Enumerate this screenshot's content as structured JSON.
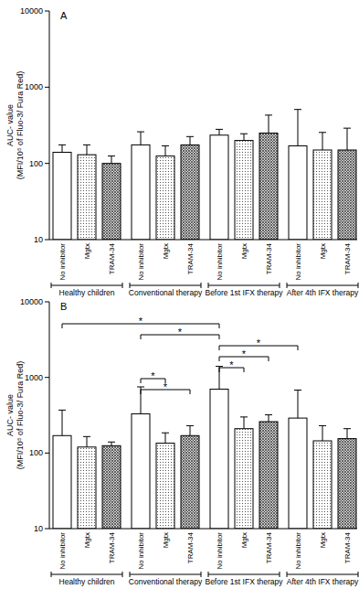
{
  "chart_data": [
    {
      "type": "bar",
      "title": "A",
      "y_label": "AUC- value\n(MFI/10⁵ of Fluo-3/ Fura Red)",
      "categories": [
        "No inhibitor",
        "Mgtx",
        "TRAM-34",
        "No inhibitor",
        "Mgtx",
        "TRAM-34",
        "No inhibitor",
        "Mgtx",
        "TRAM-34",
        "No inhibitor",
        "Mgtx",
        "TRAM-34"
      ],
      "groups": [
        "Healthy children",
        "Conventional therapy",
        "Before 1st IFX therapy",
        "After 4th IFX therapy"
      ],
      "values": [
        140,
        130,
        100,
        175,
        125,
        175,
        235,
        200,
        250,
        170,
        150,
        150
      ],
      "errors": [
        35,
        45,
        25,
        85,
        45,
        50,
        45,
        45,
        180,
        340,
        105,
        140
      ],
      "ylim": [
        10,
        10000
      ],
      "yticks": [
        10,
        100,
        1000,
        10000
      ],
      "log": "y"
    },
    {
      "type": "bar",
      "title": "B",
      "y_label": "AUC- value\n(MFI/10⁵ of Fluo-3/ Fura Red)",
      "categories": [
        "No inhibitor",
        "Mgtx",
        "TRAM-34",
        "No inhibitor",
        "Mgtx",
        "TRAM-34",
        "No inhibitor",
        "Mgtx",
        "TRAM-34",
        "No inhibitor",
        "Mgtx",
        "TRAM-34"
      ],
      "groups": [
        "Healthy children",
        "Conventional therapy",
        "Before 1st IFX therapy",
        "After 4th IFX therapy"
      ],
      "values": [
        170,
        120,
        125,
        330,
        135,
        170,
        700,
        210,
        260,
        290,
        145,
        155
      ],
      "errors": [
        200,
        45,
        15,
        420,
        50,
        60,
        700,
        90,
        60,
        390,
        85,
        55
      ],
      "significance": [
        {
          "from": 0,
          "to": 6,
          "label": "*"
        },
        {
          "from": 3,
          "to": 6,
          "label": "*"
        },
        {
          "from": 6,
          "to": 9,
          "label": "*"
        },
        {
          "from": 6,
          "to": 8,
          "label": "*"
        },
        {
          "from": 6,
          "to": 7,
          "label": "*"
        },
        {
          "from": 3,
          "to": 4,
          "label": "*"
        },
        {
          "from": 3,
          "to": 5,
          "label": "*"
        }
      ],
      "ylim": [
        10,
        10000
      ],
      "yticks": [
        10,
        100,
        1000,
        10000
      ],
      "log": "y"
    }
  ]
}
